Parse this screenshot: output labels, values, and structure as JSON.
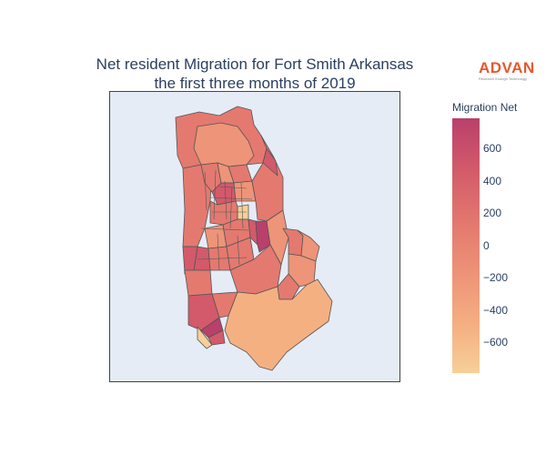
{
  "title_line1": "Net resident Migration for Fort Smith Arkansas",
  "title_line2": "the first three months of 2019",
  "logo": {
    "word": "ADVAN",
    "tagline": "Research through Technology"
  },
  "colorbar": {
    "title": "Migration Net",
    "ticks": [
      "600",
      "400",
      "200",
      "0",
      "−200",
      "−400",
      "−600"
    ],
    "tick_values": [
      600,
      400,
      200,
      0,
      -200,
      -400,
      -600
    ],
    "range": [
      -780,
      790
    ],
    "colors": [
      "#f7cf98",
      "#f5b082",
      "#ee9478",
      "#e4796f",
      "#d25a6a",
      "#b9406a"
    ]
  },
  "map": {
    "region": "Fort Smith, Arkansas",
    "period": "the first three months of 2019",
    "base_color": "#e5ecf6",
    "border_color": "#555555"
  }
}
